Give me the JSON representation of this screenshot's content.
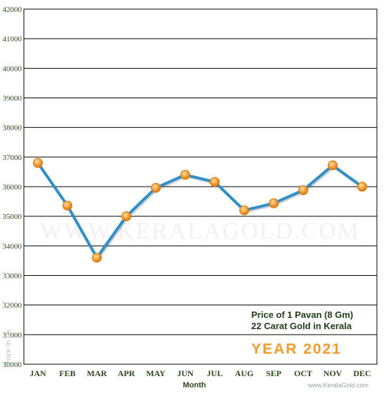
{
  "chart_data": {
    "type": "line",
    "categories": [
      "JAN",
      "FEB",
      "MAR",
      "APR",
      "MAY",
      "JUN",
      "JUL",
      "AUG",
      "SEP",
      "OCT",
      "NOV",
      "DEC"
    ],
    "series": [
      {
        "values": [
          36800,
          35360,
          33600,
          35000,
          35960,
          36400,
          36160,
          35200,
          35440,
          35880,
          36720,
          36000
        ]
      }
    ],
    "ylim": [
      30000,
      42000
    ],
    "yticks": [
      30000,
      31000,
      32000,
      33000,
      34000,
      35000,
      36000,
      37000,
      38000,
      39000,
      40000,
      41000,
      42000
    ],
    "xlabel": "Month",
    "ylabel": "Price in Rs",
    "grid": true,
    "annotations": {
      "line1": "Price of 1 Pavan (8 Gm)",
      "line2": "22 Carat Gold in Kerala",
      "year": "YEAR 2021",
      "watermark": "WWW.KERALAGOLD.COM",
      "credit": "www.KeralaGold.com"
    },
    "colors": {
      "line": "#2f8fc9",
      "marker": "#f5a13a",
      "marker_stroke": "#d27a16",
      "grid": "#000000"
    }
  }
}
